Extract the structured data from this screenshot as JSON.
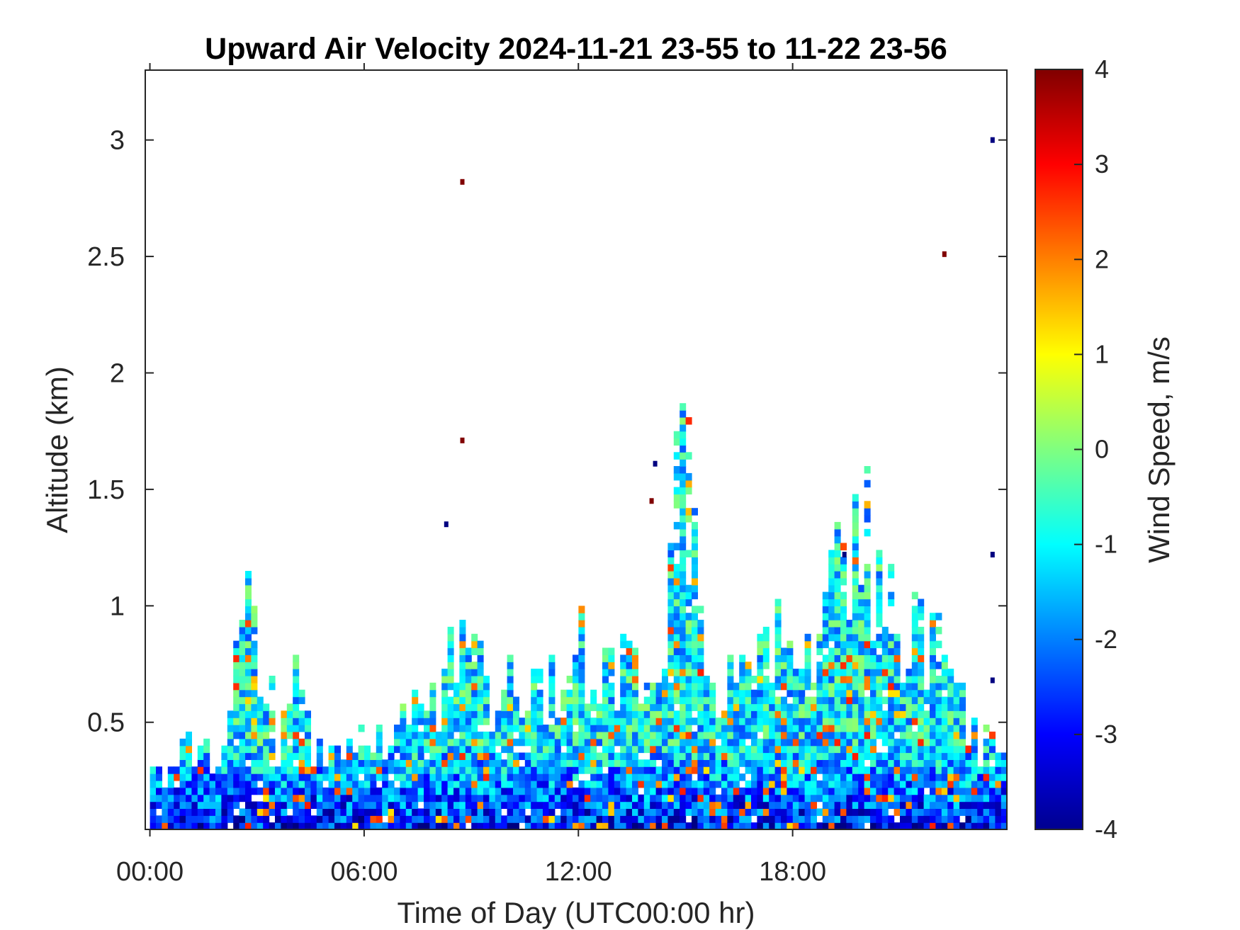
{
  "chart_data": {
    "type": "heatmap",
    "title": "Upward Air Velocity 2024-11-21 23-55 to 11-22 23-56",
    "xlabel": "Time of Day (UTC00:00 hr)",
    "ylabel": "Altitude (km)",
    "x_ticks": [
      "00:00",
      "06:00",
      "12:00",
      "18:00"
    ],
    "x_tick_hours": [
      0,
      6,
      12,
      18
    ],
    "xlim_hours": [
      -0.13,
      24.0
    ],
    "y_ticks": [
      0.5,
      1,
      1.5,
      2,
      2.5,
      3
    ],
    "y_tick_labels": [
      "0.5",
      "1",
      "1.5",
      "2",
      "2.5",
      "3"
    ],
    "ylim": [
      0.04,
      3.3
    ],
    "colorbar": {
      "label": "Wind Speed, m/s",
      "ticks": [
        -4,
        -3,
        -2,
        -1,
        0,
        1,
        2,
        3,
        4
      ],
      "tick_labels": [
        "-4",
        "-3",
        "-2",
        "-1",
        "0",
        "1",
        "2",
        "3",
        "4"
      ],
      "clim": [
        -4,
        4
      ],
      "colormap": "jet"
    },
    "grid": false,
    "time_step_hours": 0.1667,
    "altitude_step_km": 0.03,
    "echo_top_km": [
      [
        0.0,
        0.33
      ],
      [
        1.0,
        0.45
      ],
      [
        2.0,
        0.4
      ],
      [
        2.5,
        1.27
      ],
      [
        3.0,
        1.05
      ],
      [
        3.5,
        0.5
      ],
      [
        4.0,
        0.9
      ],
      [
        4.5,
        0.45
      ],
      [
        5.0,
        0.42
      ],
      [
        6.0,
        0.48
      ],
      [
        7.0,
        0.62
      ],
      [
        8.0,
        0.7
      ],
      [
        8.5,
        1.1
      ],
      [
        9.0,
        1.17
      ],
      [
        9.5,
        0.65
      ],
      [
        10.0,
        0.78
      ],
      [
        11.0,
        0.75
      ],
      [
        11.8,
        1.12
      ],
      [
        12.5,
        0.9
      ],
      [
        13.0,
        0.95
      ],
      [
        13.5,
        0.92
      ],
      [
        14.0,
        0.8
      ],
      [
        14.5,
        1.4
      ],
      [
        14.8,
        2.0
      ],
      [
        15.0,
        1.8
      ],
      [
        15.5,
        0.72
      ],
      [
        16.0,
        0.8
      ],
      [
        17.0,
        0.95
      ],
      [
        17.5,
        1.12
      ],
      [
        18.0,
        1.05
      ],
      [
        18.5,
        1.1
      ],
      [
        19.0,
        1.2
      ],
      [
        19.2,
        1.85
      ],
      [
        19.5,
        1.25
      ],
      [
        19.8,
        1.8
      ],
      [
        20.5,
        1.2
      ],
      [
        21.0,
        1.1
      ],
      [
        22.0,
        0.95
      ],
      [
        22.5,
        0.8
      ],
      [
        23.0,
        0.5
      ],
      [
        23.5,
        0.5
      ],
      [
        24.0,
        0.68
      ]
    ],
    "isolated_points": [
      {
        "time_hr": 8.75,
        "altitude_km": 2.82,
        "value": 4
      },
      {
        "time_hr": 8.75,
        "altitude_km": 1.71,
        "value": 4
      },
      {
        "time_hr": 8.3,
        "altitude_km": 1.35,
        "value": -4
      },
      {
        "time_hr": 14.05,
        "altitude_km": 1.45,
        "value": 4
      },
      {
        "time_hr": 14.15,
        "altitude_km": 1.61,
        "value": -4
      },
      {
        "time_hr": 19.45,
        "altitude_km": 1.22,
        "value": -4
      },
      {
        "time_hr": 22.25,
        "altitude_km": 2.51,
        "value": 4
      },
      {
        "time_hr": 23.6,
        "altitude_km": 3.0,
        "value": -4
      },
      {
        "time_hr": 23.6,
        "altitude_km": 1.22,
        "value": -4
      },
      {
        "time_hr": 23.6,
        "altitude_km": 0.68,
        "value": -4
      }
    ]
  }
}
